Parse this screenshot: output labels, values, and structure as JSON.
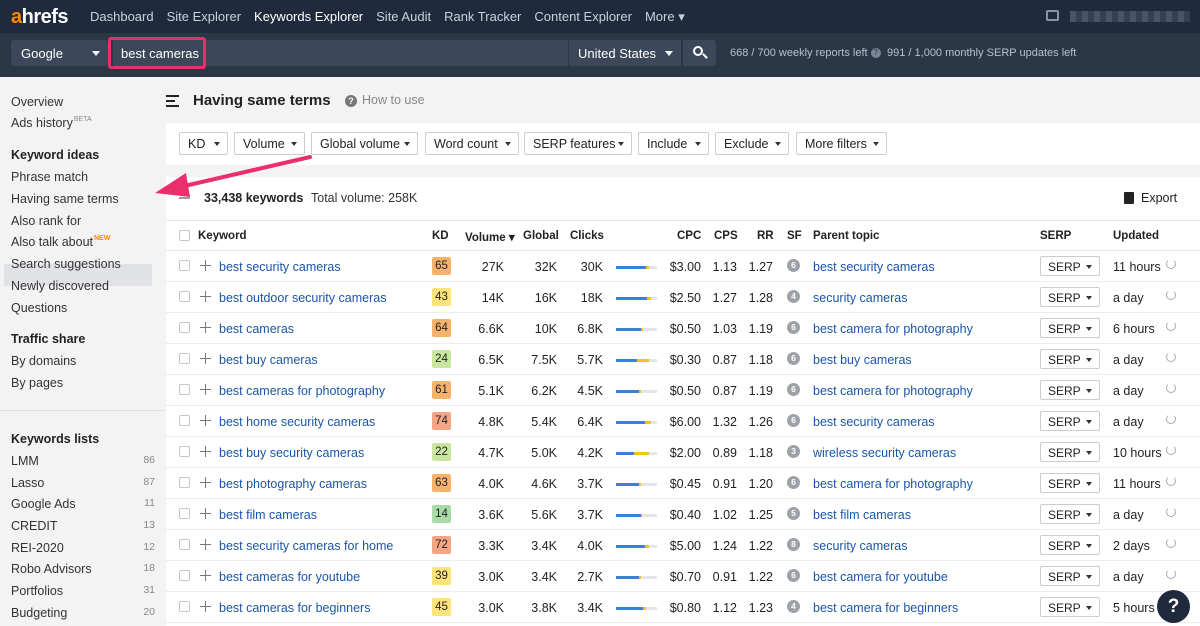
{
  "app": {
    "logo_a": "a",
    "logo_rest": "hrefs"
  },
  "nav": [
    "Dashboard",
    "Site Explorer",
    "Keywords Explorer",
    "Site Audit",
    "Rank Tracker",
    "Content Explorer",
    "More"
  ],
  "search": {
    "engine": "Google",
    "keyword": "best cameras",
    "country": "United States",
    "reports_left": "668 / 700 weekly reports left",
    "serp_updates_left": "991 / 1,000 monthly SERP updates left"
  },
  "sidebar": {
    "top": [
      "Overview",
      "Ads history"
    ],
    "ads_badge": "BETA",
    "keyword_ideas_head": "Keyword ideas",
    "keyword_ideas": [
      "Phrase match",
      "Having same terms",
      "Also rank for",
      "Also talk about",
      "Search suggestions",
      "Newly discovered",
      "Questions"
    ],
    "new_badge": "NEW",
    "traffic_head": "Traffic share",
    "traffic": [
      "By domains",
      "By pages"
    ],
    "lists_head": "Keywords lists",
    "lists": [
      {
        "name": "LMM",
        "count": "86"
      },
      {
        "name": "Lasso",
        "count": "87"
      },
      {
        "name": "Google Ads",
        "count": "11"
      },
      {
        "name": "CREDIT",
        "count": "13"
      },
      {
        "name": "REI-2020",
        "count": "12"
      },
      {
        "name": "Robo Advisors",
        "count": "18"
      },
      {
        "name": "Portfolios",
        "count": "31"
      },
      {
        "name": "Budgeting",
        "count": "20"
      }
    ]
  },
  "page": {
    "title": "Having same terms",
    "how_to": "How to use"
  },
  "filters": [
    "KD",
    "Volume",
    "Global volume",
    "Word count",
    "SERP features",
    "Include",
    "Exclude",
    "More filters"
  ],
  "summary": {
    "keywords": "33,438 keywords",
    "total_volume": "Total volume: 258K",
    "export": "Export"
  },
  "table": {
    "headers": {
      "keyword": "Keyword",
      "kd": "KD",
      "volume": "Volume ▾",
      "global": "Global",
      "clicks": "Clicks",
      "cpc": "CPC",
      "cps": "CPS",
      "rr": "RR",
      "sf": "SF",
      "parent": "Parent topic",
      "serp": "SERP",
      "updated": "Updated"
    },
    "serp_label": "SERP",
    "rows": [
      {
        "keyword": "best security cameras",
        "kd": "65",
        "kd_color": "#f5b26b",
        "volume": "27K",
        "global": "32K",
        "clicks": "30K",
        "cpc": "$3.00",
        "cps": "1.13",
        "rr": "1.27",
        "sf": "6",
        "parent": "best security cameras",
        "updated": "11 hours",
        "click_share": [
          0.72,
          0.08
        ]
      },
      {
        "keyword": "best outdoor security cameras",
        "kd": "43",
        "kd_color": "#fce47b",
        "volume": "14K",
        "global": "16K",
        "clicks": "18K",
        "cpc": "$2.50",
        "cps": "1.27",
        "rr": "1.28",
        "sf": "4",
        "parent": "security cameras",
        "updated": "a day",
        "click_share": [
          0.75,
          0.1
        ]
      },
      {
        "keyword": "best cameras",
        "kd": "64",
        "kd_color": "#f5b26b",
        "volume": "6.6K",
        "global": "10K",
        "clicks": "6.8K",
        "cpc": "$0.50",
        "cps": "1.03",
        "rr": "1.19",
        "sf": "6",
        "parent": "best camera for photography",
        "updated": "6 hours",
        "click_share": [
          0.6,
          0.05
        ]
      },
      {
        "keyword": "best buy cameras",
        "kd": "24",
        "kd_color": "#c9e5a0",
        "volume": "6.5K",
        "global": "7.5K",
        "clicks": "5.7K",
        "cpc": "$0.30",
        "cps": "0.87",
        "rr": "1.18",
        "sf": "6",
        "parent": "best buy cameras",
        "updated": "a day",
        "click_share": [
          0.5,
          0.3
        ]
      },
      {
        "keyword": "best cameras for photography",
        "kd": "61",
        "kd_color": "#f5b26b",
        "volume": "5.1K",
        "global": "6.2K",
        "clicks": "4.5K",
        "cpc": "$0.50",
        "cps": "0.87",
        "rr": "1.19",
        "sf": "6",
        "parent": "best camera for photography",
        "updated": "a day",
        "click_share": [
          0.55,
          0.05
        ]
      },
      {
        "keyword": "best home security cameras",
        "kd": "74",
        "kd_color": "#f4a585",
        "volume": "4.8K",
        "global": "5.4K",
        "clicks": "6.4K",
        "cpc": "$6.00",
        "cps": "1.32",
        "rr": "1.26",
        "sf": "6",
        "parent": "best security cameras",
        "updated": "a day",
        "click_share": [
          0.7,
          0.15
        ]
      },
      {
        "keyword": "best buy security cameras",
        "kd": "22",
        "kd_color": "#c9e5a0",
        "volume": "4.7K",
        "global": "5.0K",
        "clicks": "4.2K",
        "cpc": "$2.00",
        "cps": "0.89",
        "rr": "1.18",
        "sf": "3",
        "parent": "wireless security cameras",
        "updated": "10 hours",
        "click_share": [
          0.45,
          0.35
        ]
      },
      {
        "keyword": "best photography cameras",
        "kd": "63",
        "kd_color": "#f5b26b",
        "volume": "4.0K",
        "global": "4.6K",
        "clicks": "3.7K",
        "cpc": "$0.45",
        "cps": "0.91",
        "rr": "1.20",
        "sf": "6",
        "parent": "best camera for photography",
        "updated": "11 hours",
        "click_share": [
          0.55,
          0.05
        ]
      },
      {
        "keyword": "best film cameras",
        "kd": "14",
        "kd_color": "#a8dba8",
        "volume": "3.6K",
        "global": "5.6K",
        "clicks": "3.7K",
        "cpc": "$0.40",
        "cps": "1.02",
        "rr": "1.25",
        "sf": "5",
        "parent": "best film cameras",
        "updated": "a day",
        "click_share": [
          0.6,
          0.02
        ]
      },
      {
        "keyword": "best security cameras for home",
        "kd": "72",
        "kd_color": "#f4a585",
        "volume": "3.3K",
        "global": "3.4K",
        "clicks": "4.0K",
        "cpc": "$5.00",
        "cps": "1.24",
        "rr": "1.22",
        "sf": "8",
        "parent": "security cameras",
        "updated": "2 days",
        "click_share": [
          0.7,
          0.1
        ]
      },
      {
        "keyword": "best cameras for youtube",
        "kd": "39",
        "kd_color": "#fce47b",
        "volume": "3.0K",
        "global": "3.4K",
        "clicks": "2.7K",
        "cpc": "$0.70",
        "cps": "0.91",
        "rr": "1.22",
        "sf": "6",
        "parent": "best camera for youtube",
        "updated": "a day",
        "click_share": [
          0.55,
          0.05
        ]
      },
      {
        "keyword": "best cameras for beginners",
        "kd": "45",
        "kd_color": "#fce47b",
        "volume": "3.0K",
        "global": "3.8K",
        "clicks": "3.4K",
        "cpc": "$0.80",
        "cps": "1.12",
        "rr": "1.23",
        "sf": "4",
        "parent": "best camera for beginners",
        "updated": "5 hours",
        "click_share": [
          0.65,
          0.08
        ]
      }
    ]
  },
  "help": "?"
}
